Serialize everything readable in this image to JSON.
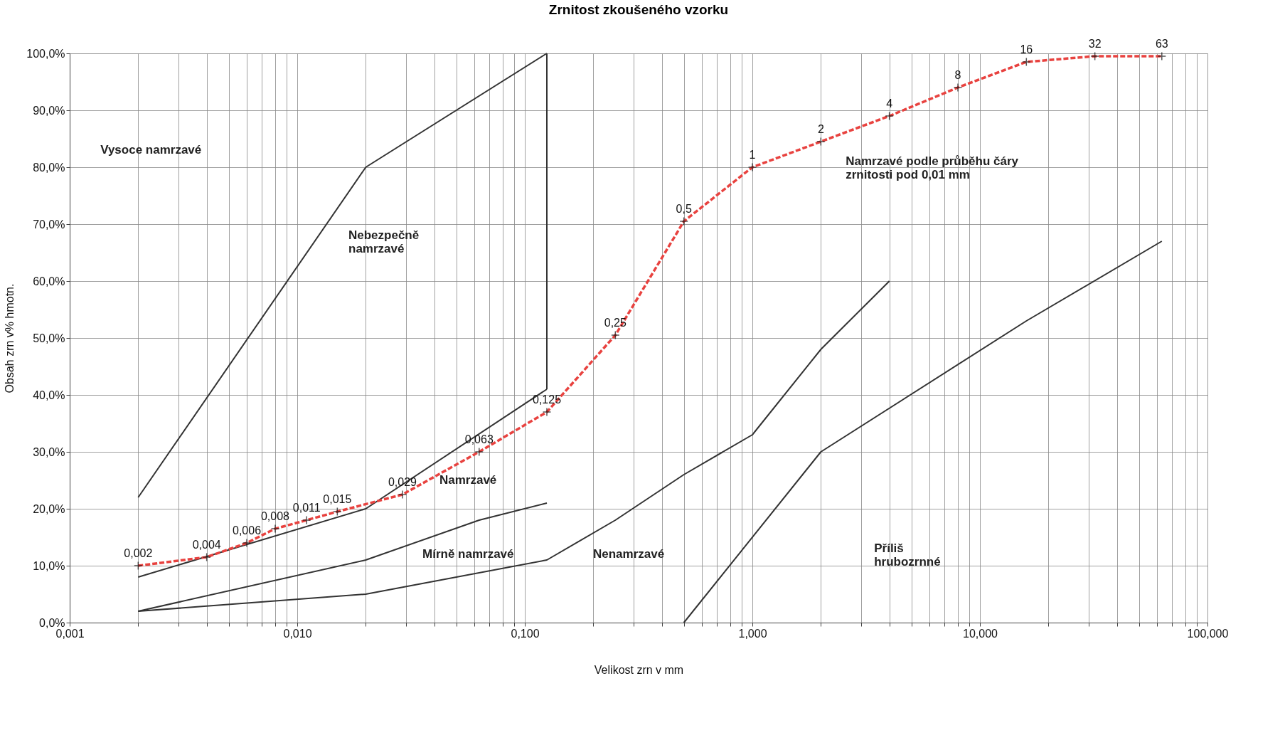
{
  "chart_data": {
    "type": "line",
    "title": "Zrnitost zkoušeného vzorku",
    "xlabel": "Velikost zrn v mm",
    "ylabel": "Obsah zrn v% hmotn.",
    "log": "x",
    "grid": true,
    "xlim": [
      0.001,
      100
    ],
    "ylim": [
      0,
      100
    ],
    "xticks": [
      {
        "value": 0.001,
        "label": "0,001"
      },
      {
        "value": 0.002,
        "label": null
      },
      {
        "value": 0.003,
        "label": null
      },
      {
        "value": 0.004,
        "label": null
      },
      {
        "value": 0.005,
        "label": null
      },
      {
        "value": 0.006,
        "label": null
      },
      {
        "value": 0.007,
        "label": null
      },
      {
        "value": 0.008,
        "label": null
      },
      {
        "value": 0.009,
        "label": null
      },
      {
        "value": 0.01,
        "label": "0,010"
      },
      {
        "value": 0.02,
        "label": null
      },
      {
        "value": 0.03,
        "label": null
      },
      {
        "value": 0.04,
        "label": null
      },
      {
        "value": 0.05,
        "label": null
      },
      {
        "value": 0.06,
        "label": null
      },
      {
        "value": 0.07,
        "label": null
      },
      {
        "value": 0.08,
        "label": null
      },
      {
        "value": 0.09,
        "label": null
      },
      {
        "value": 0.1,
        "label": "0,100"
      },
      {
        "value": 0.2,
        "label": null
      },
      {
        "value": 0.3,
        "label": null
      },
      {
        "value": 0.4,
        "label": null
      },
      {
        "value": 0.5,
        "label": null
      },
      {
        "value": 0.6,
        "label": null
      },
      {
        "value": 0.7,
        "label": null
      },
      {
        "value": 0.8,
        "label": null
      },
      {
        "value": 0.9,
        "label": null
      },
      {
        "value": 1,
        "label": "1,000"
      },
      {
        "value": 2,
        "label": null
      },
      {
        "value": 3,
        "label": null
      },
      {
        "value": 4,
        "label": null
      },
      {
        "value": 5,
        "label": null
      },
      {
        "value": 6,
        "label": null
      },
      {
        "value": 7,
        "label": null
      },
      {
        "value": 8,
        "label": null
      },
      {
        "value": 9,
        "label": null
      },
      {
        "value": 10,
        "label": "10,000"
      },
      {
        "value": 20,
        "label": null
      },
      {
        "value": 30,
        "label": null
      },
      {
        "value": 40,
        "label": null
      },
      {
        "value": 50,
        "label": null
      },
      {
        "value": 60,
        "label": null
      },
      {
        "value": 70,
        "label": null
      },
      {
        "value": 80,
        "label": null
      },
      {
        "value": 90,
        "label": null
      },
      {
        "value": 100,
        "label": "100,000"
      }
    ],
    "yticks": [
      {
        "value": 0,
        "label": "0,0%"
      },
      {
        "value": 10,
        "label": "10,0%"
      },
      {
        "value": 20,
        "label": "20,0%"
      },
      {
        "value": 30,
        "label": "30,0%"
      },
      {
        "value": 40,
        "label": "40,0%"
      },
      {
        "value": 50,
        "label": "50,0%"
      },
      {
        "value": 60,
        "label": "60,0%"
      },
      {
        "value": 70,
        "label": "70,0%"
      },
      {
        "value": 80,
        "label": "80,0%"
      },
      {
        "value": 90,
        "label": "90,0%"
      },
      {
        "value": 100,
        "label": "100,0%"
      }
    ],
    "series": [
      {
        "color": "#333333",
        "line_style": "solid",
        "marker": "none",
        "x": [
          0.002,
          0.02,
          0.125
        ],
        "values": [
          22,
          80,
          100
        ]
      },
      {
        "color": "#333333",
        "line_style": "solid",
        "marker": "none",
        "x": [
          0.125,
          0.125
        ],
        "values": [
          100,
          41
        ]
      },
      {
        "color": "#333333",
        "line_style": "solid",
        "marker": "none",
        "x": [
          0.002,
          0.02,
          0.125
        ],
        "values": [
          8,
          20,
          41
        ]
      },
      {
        "color": "#333333",
        "line_style": "solid",
        "marker": "none",
        "x": [
          0.002,
          0.02,
          0.063,
          0.125
        ],
        "values": [
          2,
          11,
          18,
          21
        ]
      },
      {
        "color": "#333333",
        "line_style": "solid",
        "marker": "none",
        "x": [
          0.002,
          0.02,
          0.125,
          0.25,
          0.5,
          1,
          2,
          4
        ],
        "values": [
          2,
          5,
          11,
          18,
          26,
          33,
          48,
          60
        ]
      },
      {
        "color": "#333333",
        "line_style": "solid",
        "marker": "none",
        "x": [
          0.5,
          2,
          16,
          63
        ],
        "values": [
          0,
          30,
          53,
          67
        ]
      },
      {
        "color": "#e8423f",
        "line_style": "dashed",
        "marker": "cross",
        "x": [
          0.002,
          0.004,
          0.006,
          0.008,
          0.011,
          0.015,
          0.029,
          0.063,
          0.125,
          0.25,
          0.5,
          1,
          2,
          4,
          8,
          16,
          32,
          63
        ],
        "values": [
          10,
          11.5,
          14,
          16.5,
          18,
          19.5,
          22.5,
          30,
          37,
          50.5,
          70.5,
          80,
          84.5,
          89,
          94,
          98.5,
          99.5,
          99.5
        ]
      }
    ],
    "annotations": [
      {
        "text": "0,002",
        "x": 0.002,
        "y": 10
      },
      {
        "text": "0,004",
        "x": 0.004,
        "y": 11.5
      },
      {
        "text": "0,006",
        "x": 0.006,
        "y": 14
      },
      {
        "text": "0,008",
        "x": 0.008,
        "y": 16.5
      },
      {
        "text": "0,011",
        "x": 0.011,
        "y": 18
      },
      {
        "text": "0,015",
        "x": 0.015,
        "y": 19.5
      },
      {
        "text": "0,029",
        "x": 0.029,
        "y": 22.5
      },
      {
        "text": "0,063",
        "x": 0.063,
        "y": 30
      },
      {
        "text": "0,125",
        "x": 0.125,
        "y": 37
      },
      {
        "text": "0,25",
        "x": 0.25,
        "y": 50.5
      },
      {
        "text": "0,5",
        "x": 0.5,
        "y": 70.5
      },
      {
        "text": "1",
        "x": 1,
        "y": 80
      },
      {
        "text": "2",
        "x": 2,
        "y": 84.5
      },
      {
        "text": "4",
        "x": 4,
        "y": 89
      },
      {
        "text": "8",
        "x": 8,
        "y": 94
      },
      {
        "text": "16",
        "x": 16,
        "y": 98.5
      },
      {
        "text": "32",
        "x": 32,
        "y": 99.5
      },
      {
        "text": "63",
        "x": 63,
        "y": 99.5
      },
      "Vysoce namrzavé",
      "Nebezpečně\nnamrzavé",
      "Namrzavé",
      "Mírně namrzavé",
      "Nenamrzavé",
      "Namrzavé podle průběhu čáry\nzrnitosti pod 0,01 mm",
      "Příliš\nhrubozrnné"
    ]
  }
}
